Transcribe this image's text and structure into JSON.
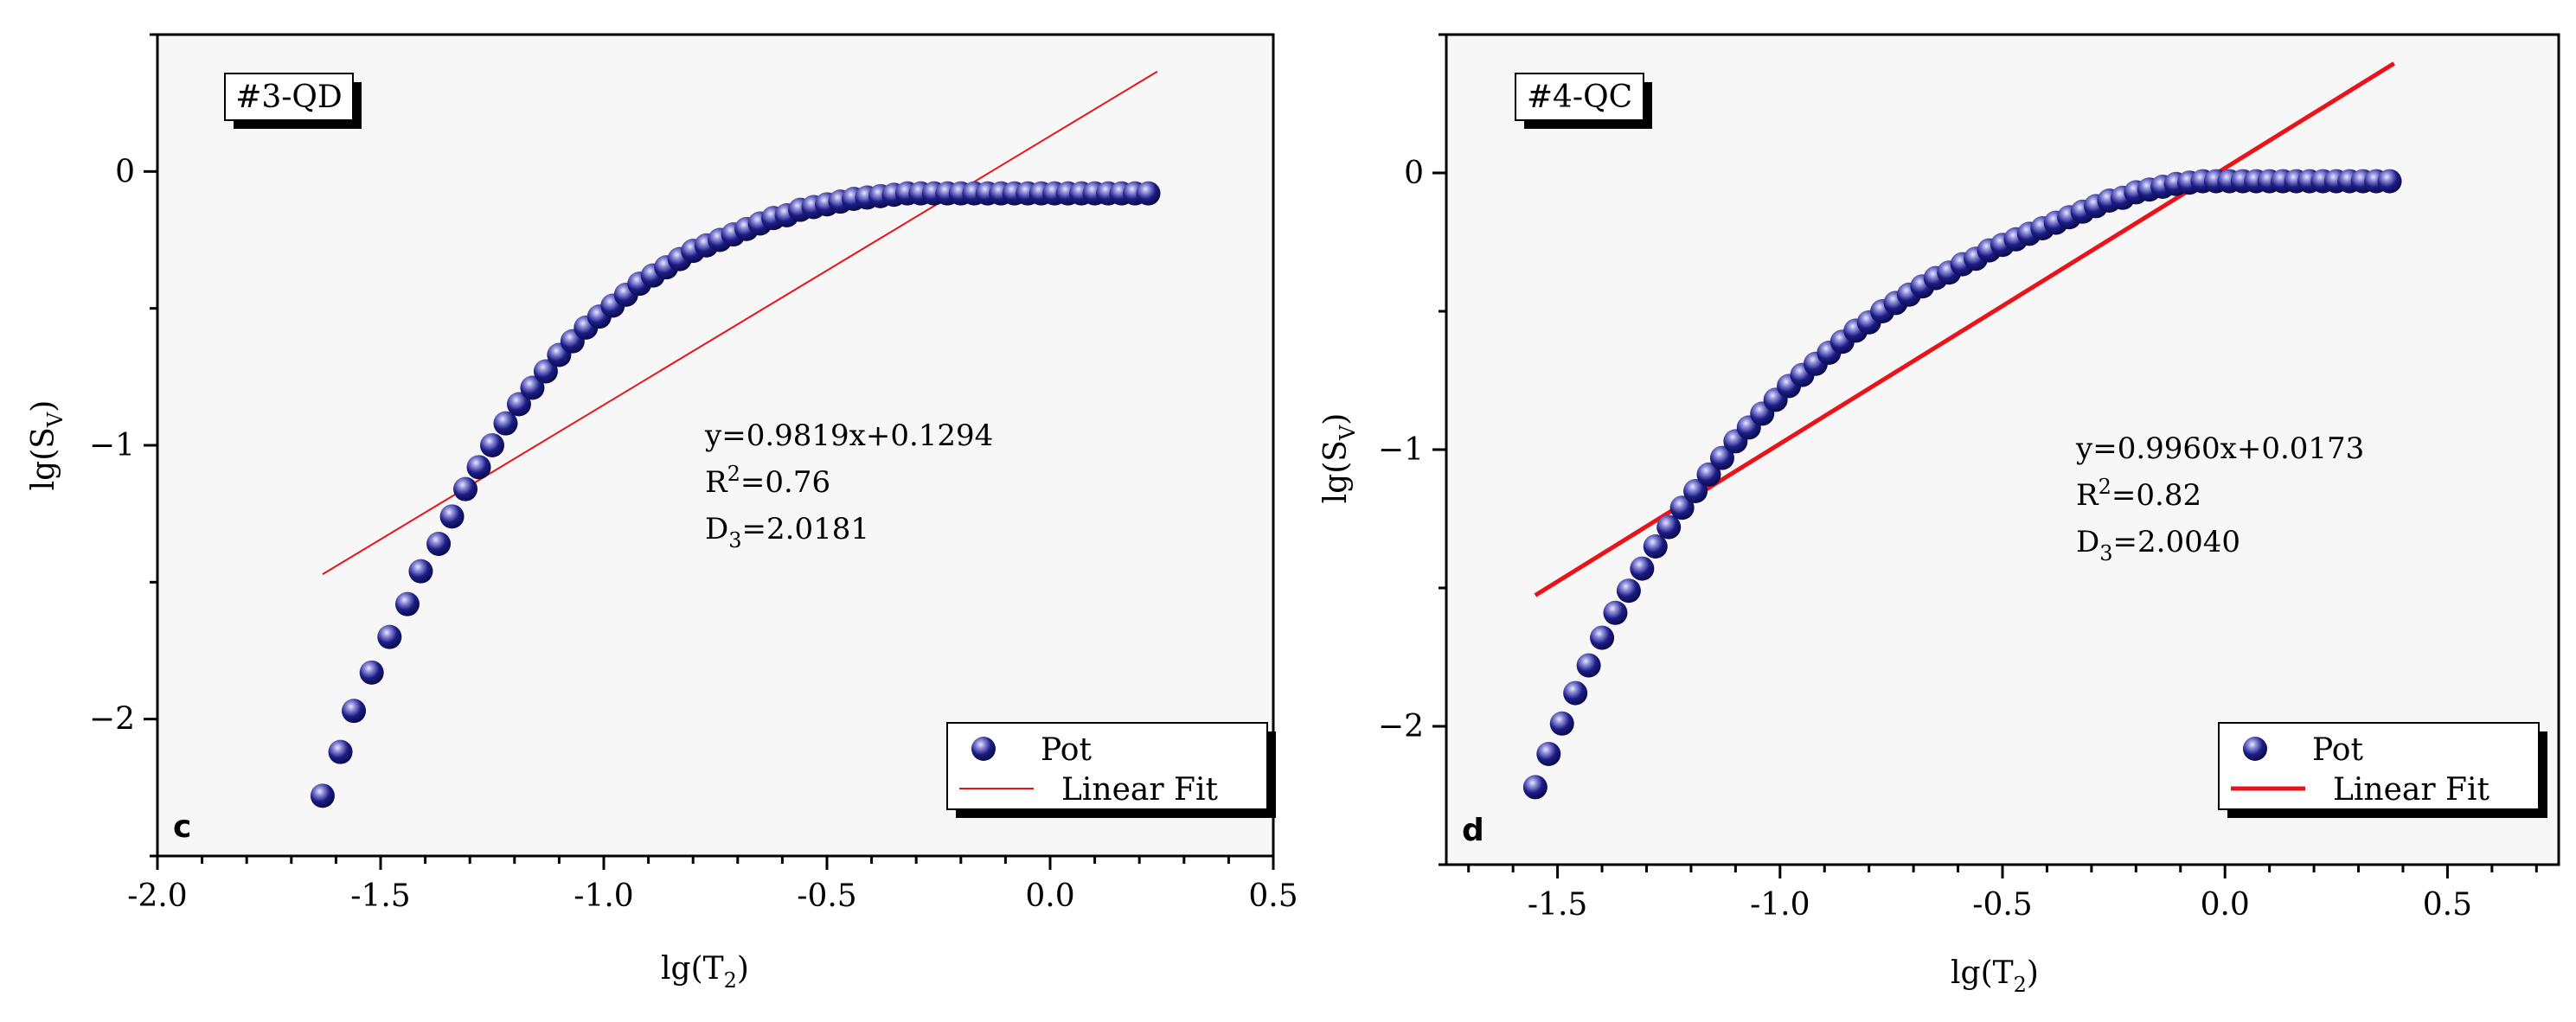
{
  "colors": {
    "plot_bg": "#f7f7f7",
    "marker": "#14147a",
    "marker_highlight": "#c8c8ee",
    "fit_line": "#e8141a",
    "axis": "#000000"
  },
  "chart_data": [
    {
      "type": "scatter",
      "panel_letter": "c",
      "sample_tag": "#3-QD",
      "xlabel": "lg(T2)",
      "ylabel": "lg(SV)",
      "xlim": [
        -2.0,
        0.5
      ],
      "ylim": [
        -2.5,
        0.5
      ],
      "x_ticks": [
        -2.0,
        -1.5,
        -1.0,
        -0.5,
        0.0,
        0.5
      ],
      "x_tick_labels": [
        "-2.0",
        "-1.5",
        "-1.0",
        "-0.5",
        "0.0",
        "0.5"
      ],
      "y_ticks": [
        -2,
        -1,
        0
      ],
      "y_tick_labels": [
        "-2",
        "-1",
        "0"
      ],
      "legend": {
        "position": "bottom-right",
        "entries": [
          "Pot",
          "Linear Fit"
        ]
      },
      "annotation": {
        "equation": "y=0.9819x+0.1294",
        "r2": "R2=0.76",
        "d3": "D3=2.0181"
      },
      "fit_line": {
        "slope": 0.9819,
        "intercept": 0.1294,
        "x_range": [
          -1.63,
          0.24
        ]
      },
      "series": [
        {
          "name": "Pot",
          "x": [
            -1.63,
            -1.59,
            -1.56,
            -1.52,
            -1.48,
            -1.44,
            -1.41,
            -1.37,
            -1.34,
            -1.31,
            -1.28,
            -1.25,
            -1.22,
            -1.19,
            -1.16,
            -1.13,
            -1.1,
            -1.07,
            -1.04,
            -1.01,
            -0.98,
            -0.95,
            -0.92,
            -0.89,
            -0.86,
            -0.83,
            -0.8,
            -0.77,
            -0.74,
            -0.71,
            -0.68,
            -0.65,
            -0.62,
            -0.59,
            -0.56,
            -0.53,
            -0.5,
            -0.47,
            -0.44,
            -0.41,
            -0.38,
            -0.35,
            -0.32,
            -0.29,
            -0.26,
            -0.23,
            -0.2,
            -0.17,
            -0.14,
            -0.11,
            -0.08,
            -0.05,
            -0.02,
            0.01,
            0.04,
            0.07,
            0.1,
            0.13,
            0.16,
            0.19,
            0.22
          ],
          "y": [
            -2.28,
            -2.12,
            -1.97,
            -1.83,
            -1.7,
            -1.58,
            -1.46,
            -1.36,
            -1.26,
            -1.16,
            -1.08,
            -1.0,
            -0.92,
            -0.85,
            -0.79,
            -0.73,
            -0.67,
            -0.62,
            -0.57,
            -0.53,
            -0.49,
            -0.45,
            -0.41,
            -0.38,
            -0.35,
            -0.32,
            -0.29,
            -0.27,
            -0.25,
            -0.23,
            -0.21,
            -0.19,
            -0.17,
            -0.16,
            -0.14,
            -0.13,
            -0.12,
            -0.11,
            -0.1,
            -0.095,
            -0.09,
            -0.085,
            -0.08,
            -0.08,
            -0.08,
            -0.08,
            -0.08,
            -0.08,
            -0.08,
            -0.08,
            -0.08,
            -0.08,
            -0.08,
            -0.08,
            -0.08,
            -0.08,
            -0.08,
            -0.08,
            -0.08,
            -0.08,
            -0.08
          ]
        }
      ]
    },
    {
      "type": "scatter",
      "panel_letter": "d",
      "sample_tag": "#4-QC",
      "xlabel": "lg(T2)",
      "ylabel": "lg(SV)",
      "xlim": [
        -1.75,
        0.75
      ],
      "ylim": [
        -2.5,
        0.5
      ],
      "x_ticks": [
        -1.5,
        -1.0,
        -0.5,
        0.0,
        0.5
      ],
      "x_tick_labels": [
        "-1.5",
        "-1.0",
        "-0.5",
        "0.0",
        "0.5"
      ],
      "y_ticks": [
        -2,
        -1,
        0
      ],
      "y_tick_labels": [
        "-2",
        "-1",
        "0"
      ],
      "legend": {
        "position": "bottom-right",
        "entries": [
          "Pot",
          "Linear Fit"
        ]
      },
      "annotation": {
        "equation": "y=0.9960x+0.0173",
        "r2": "R2=0.82",
        "d3": "D3=2.0040"
      },
      "fit_line": {
        "slope": 0.996,
        "intercept": 0.0173,
        "x_range": [
          -1.55,
          0.38
        ]
      },
      "series": [
        {
          "name": "Pot",
          "x": [
            -1.55,
            -1.52,
            -1.49,
            -1.46,
            -1.43,
            -1.4,
            -1.37,
            -1.34,
            -1.31,
            -1.28,
            -1.25,
            -1.22,
            -1.19,
            -1.16,
            -1.13,
            -1.1,
            -1.07,
            -1.04,
            -1.01,
            -0.98,
            -0.95,
            -0.92,
            -0.89,
            -0.86,
            -0.83,
            -0.8,
            -0.77,
            -0.74,
            -0.71,
            -0.68,
            -0.65,
            -0.62,
            -0.59,
            -0.56,
            -0.53,
            -0.5,
            -0.47,
            -0.44,
            -0.41,
            -0.38,
            -0.35,
            -0.32,
            -0.29,
            -0.26,
            -0.23,
            -0.2,
            -0.17,
            -0.14,
            -0.11,
            -0.08,
            -0.05,
            -0.02,
            0.01,
            0.04,
            0.07,
            0.1,
            0.13,
            0.16,
            0.19,
            0.22,
            0.25,
            0.28,
            0.31,
            0.34,
            0.37
          ],
          "y": [
            -2.22,
            -2.1,
            -1.99,
            -1.88,
            -1.78,
            -1.68,
            -1.59,
            -1.51,
            -1.43,
            -1.35,
            -1.28,
            -1.21,
            -1.15,
            -1.09,
            -1.03,
            -0.97,
            -0.92,
            -0.87,
            -0.82,
            -0.77,
            -0.73,
            -0.69,
            -0.65,
            -0.61,
            -0.57,
            -0.54,
            -0.5,
            -0.47,
            -0.44,
            -0.41,
            -0.38,
            -0.36,
            -0.33,
            -0.31,
            -0.28,
            -0.26,
            -0.24,
            -0.22,
            -0.2,
            -0.18,
            -0.16,
            -0.14,
            -0.12,
            -0.1,
            -0.09,
            -0.07,
            -0.06,
            -0.05,
            -0.04,
            -0.035,
            -0.03,
            -0.03,
            -0.03,
            -0.03,
            -0.03,
            -0.03,
            -0.03,
            -0.03,
            -0.03,
            -0.03,
            -0.03,
            -0.03,
            -0.03,
            -0.03,
            -0.03
          ]
        }
      ]
    }
  ]
}
